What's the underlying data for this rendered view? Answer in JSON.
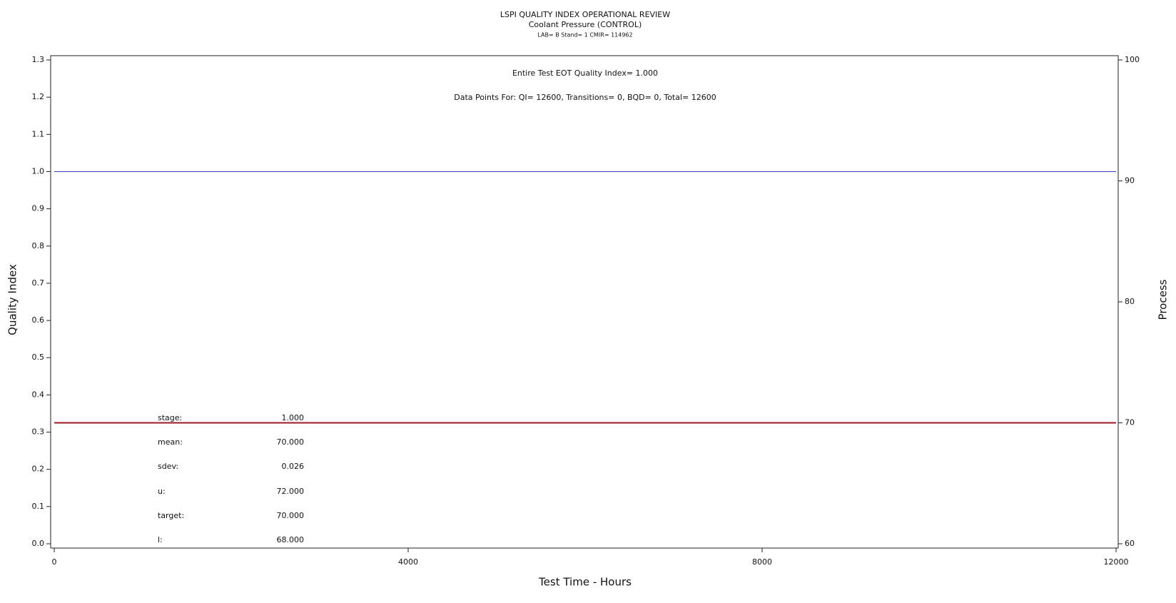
{
  "chart_data": {
    "type": "line",
    "title": "LSPI QUALITY INDEX OPERATIONAL REVIEW",
    "subtitle": "Coolant Pressure (CONTROL)",
    "subtitle2": "LAB= B Stand= 1 CMIR= 114962",
    "annotations": [
      "Entire Test EOT Quality Index=   1.000",
      "Data Points For: QI= 12600, Transitions=     0, BQD=     0, Total= 12600"
    ],
    "xlabel": "Test Time - Hours",
    "ylabel": "Quality Index",
    "y2label": "Process",
    "x": [
      0,
      12000
    ],
    "xlim": [
      0,
      12000
    ],
    "xticks": [
      0,
      4000,
      8000,
      12000
    ],
    "ylim": [
      0,
      1.3
    ],
    "yticks": [
      {
        "value": 0,
        "label": "0.0"
      },
      0.1,
      0.2,
      0.3,
      0.4,
      0.5,
      0.6,
      0.7,
      0.8,
      0.9,
      {
        "value": 1,
        "label": "1.0"
      },
      1.1,
      1.2,
      1.3
    ],
    "y2lim": [
      60,
      100
    ],
    "y2ticks": [
      60,
      70,
      80,
      90,
      100
    ],
    "series": [
      {
        "name": "Quality Index",
        "color": "#3b3bb3",
        "values": [
          1,
          1
        ]
      },
      {
        "name": "Process",
        "color": "#a01828",
        "axis": "y2",
        "values": [
          70,
          70
        ]
      }
    ],
    "stats": {
      "labels": [
        "stage:",
        "mean:",
        "sdev:",
        "u:",
        "target:",
        "l:"
      ],
      "values": [
        1,
        70,
        0.026,
        72,
        70,
        68
      ],
      "value_labels": [
        "1.000",
        "70.000",
        "0.026",
        "72.000",
        "70.000",
        "68.000"
      ]
    }
  }
}
